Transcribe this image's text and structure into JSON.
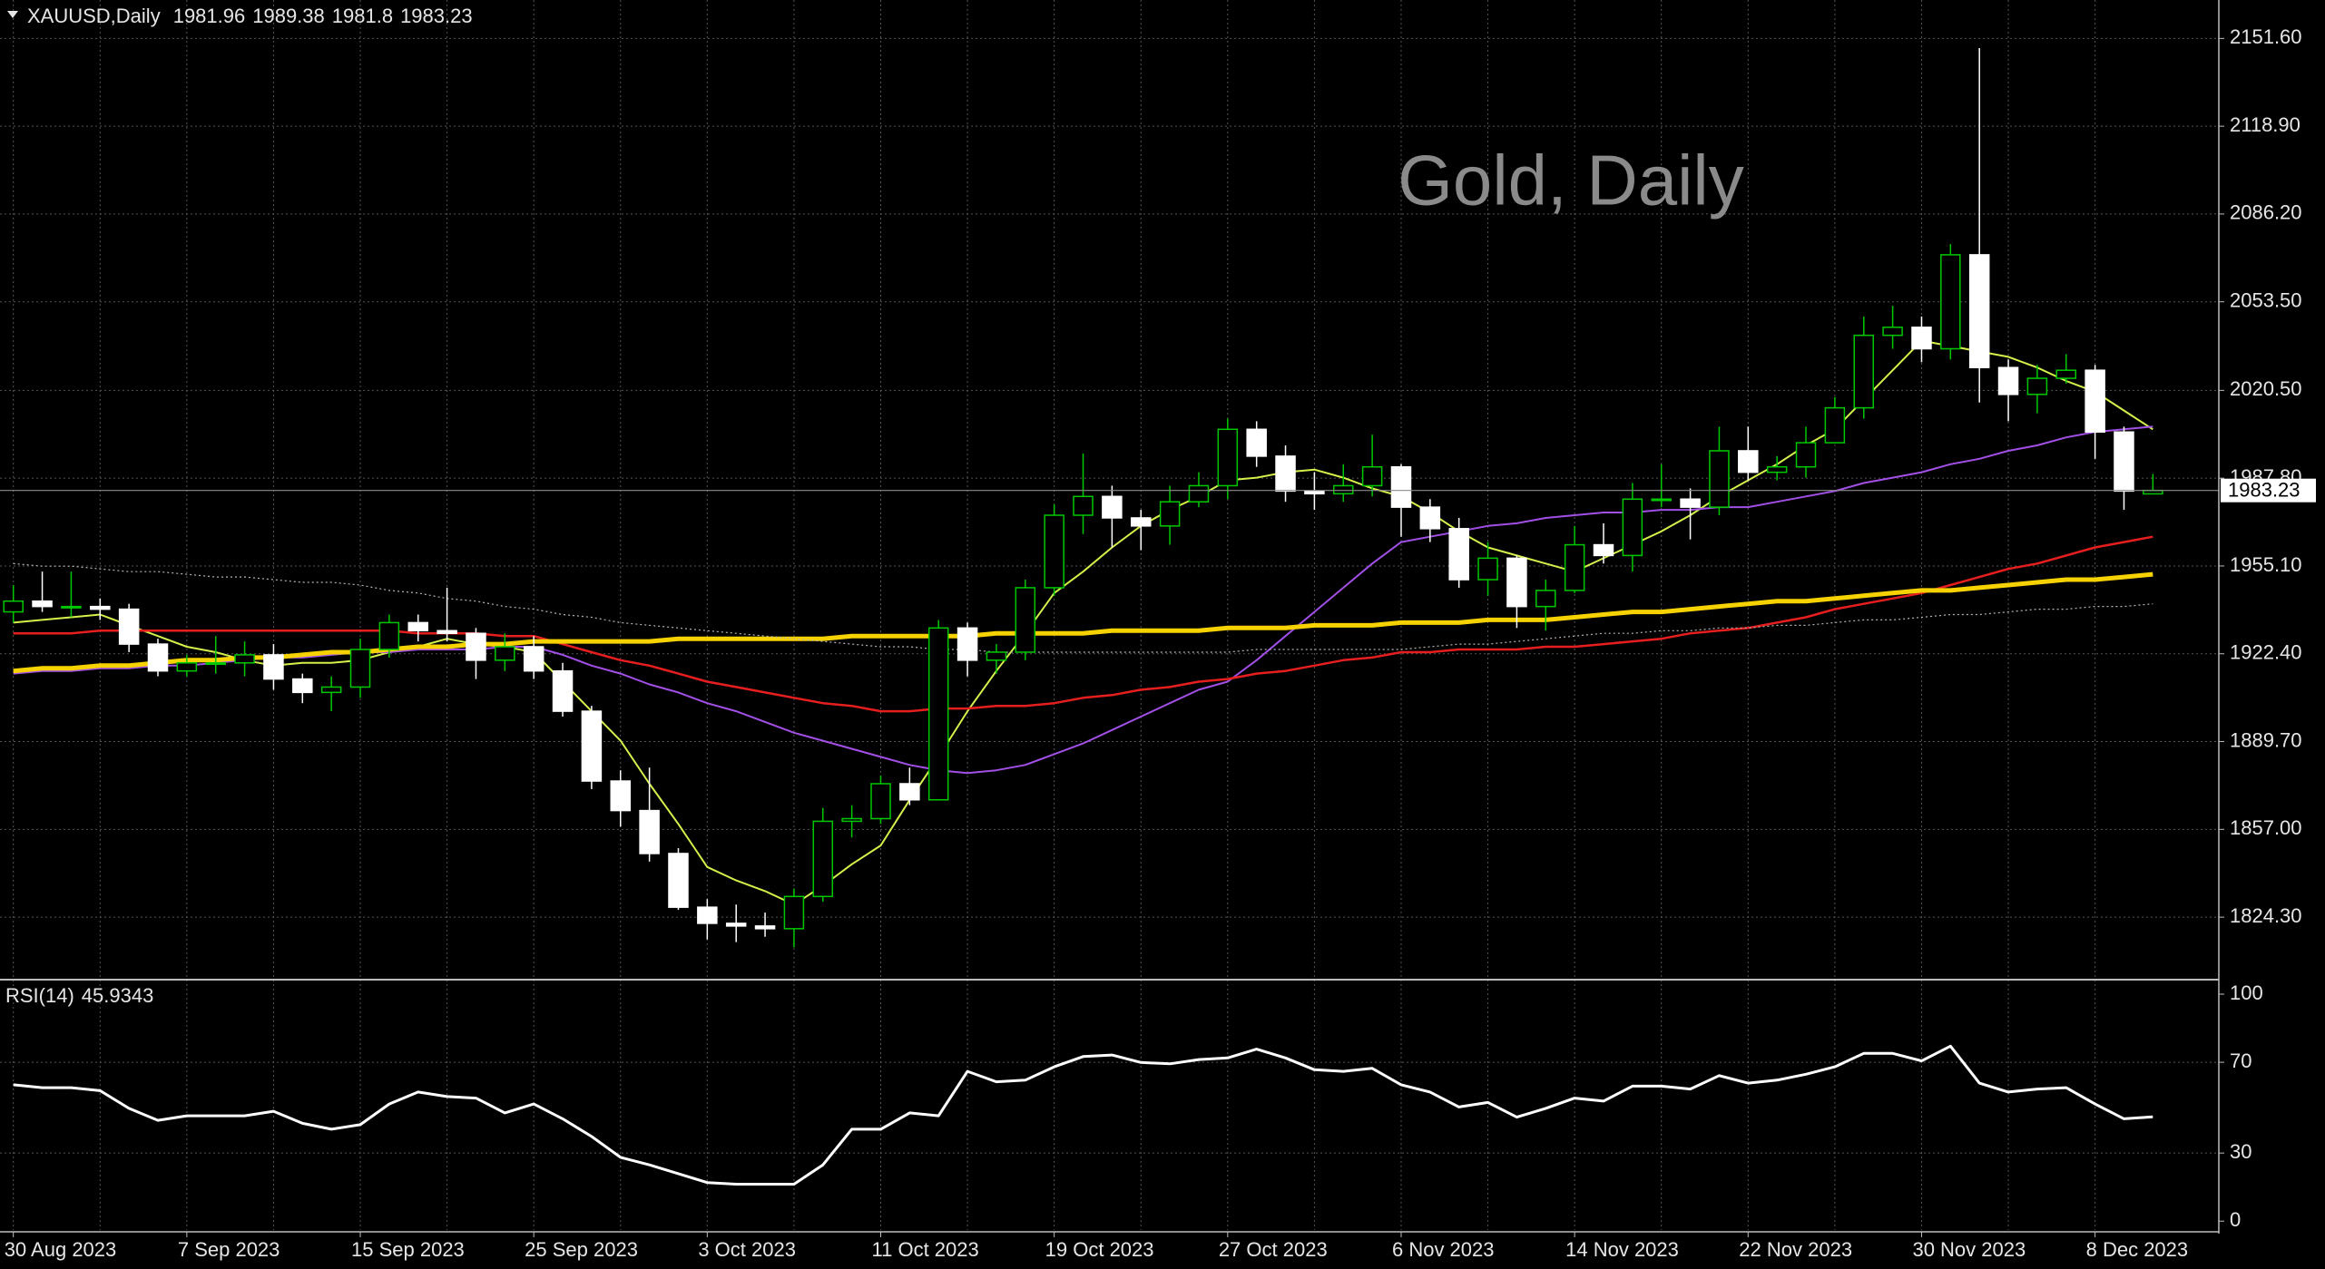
{
  "chart_data": {
    "type": "candlestick",
    "symbol": "XAUUSD,Daily",
    "watermark": "Gold, Daily",
    "categories": [
      "30 Aug 2023",
      null,
      null,
      null,
      null,
      null,
      "7 Sep 2023",
      null,
      null,
      null,
      null,
      null,
      "15 Sep 2023",
      null,
      null,
      null,
      null,
      null,
      "25 Sep 2023",
      null,
      null,
      null,
      null,
      null,
      "3 Oct 2023",
      null,
      null,
      null,
      null,
      null,
      "11 Oct 2023",
      null,
      null,
      null,
      null,
      null,
      "19 Oct 2023",
      null,
      null,
      null,
      null,
      null,
      "27 Oct 2023",
      null,
      null,
      null,
      null,
      null,
      "6 Nov 2023",
      null,
      null,
      null,
      null,
      null,
      "14 Nov 2023",
      null,
      null,
      null,
      null,
      null,
      "22 Nov 2023",
      null,
      null,
      null,
      null,
      null,
      "30 Nov 2023",
      null,
      null,
      null,
      null,
      null,
      "8 Dec 2023",
      null,
      null
    ],
    "open": [
      1938,
      1942,
      1940,
      1940,
      1939,
      1926,
      1916,
      1919,
      1919,
      1922,
      1913,
      1908,
      1910,
      1924,
      1934,
      1931,
      1930,
      1920,
      1925,
      1916,
      1901,
      1875,
      1864,
      1848,
      1828,
      1822,
      1821,
      1820,
      1832,
      1860,
      1861,
      1874,
      1868,
      1932,
      1920,
      1923,
      1947,
      1974,
      1981,
      1973,
      1970,
      1979,
      1985,
      2006,
      1996,
      1983,
      1982,
      1985,
      1992,
      1977,
      1969,
      1950,
      1958,
      1940,
      1946,
      1963,
      1959,
      1980,
      1980,
      1977,
      1998,
      1990,
      1992,
      2001,
      2014,
      2041,
      2044,
      2036,
      2071,
      2029,
      2019,
      2025,
      2028,
      2005,
      1981.96
    ],
    "high": [
      1948,
      1953,
      1953,
      1943,
      1941,
      1928,
      1922,
      1929,
      1927,
      1926,
      1915,
      1914,
      1928,
      1937,
      1937,
      1947,
      1932,
      1930,
      1929,
      1919,
      1903,
      1879,
      1880,
      1850,
      1831,
      1829,
      1826,
      1835,
      1865,
      1866,
      1877,
      1880,
      1935,
      1934,
      1926,
      1950,
      1978,
      1997,
      1985,
      1976,
      1985,
      1990,
      2010,
      2009,
      2000,
      1990,
      1993,
      2004,
      1993,
      1980,
      1973,
      1964,
      1959,
      1950,
      1970,
      1971,
      1986,
      1993,
      1984,
      2007,
      2007,
      1996,
      2007,
      2018,
      2048,
      2052,
      2048,
      2075,
      2148,
      2032,
      2030,
      2034,
      2030,
      2007,
      1989.38
    ],
    "low": [
      1934,
      1938,
      1936,
      1935,
      1923,
      1914,
      1914,
      1915,
      1914,
      1909,
      1904,
      1901,
      1906,
      1921,
      1927,
      1927,
      1913,
      1916,
      1913,
      1899,
      1872,
      1858,
      1845,
      1827,
      1816,
      1815,
      1817,
      1813,
      1830,
      1854,
      1859,
      1866,
      1868,
      1914,
      1915,
      1920,
      1944,
      1967,
      1962,
      1961,
      1963,
      1977,
      1980,
      1992,
      1979,
      1976,
      1979,
      1981,
      1966,
      1964,
      1947,
      1944,
      1932,
      1931,
      1945,
      1956,
      1953,
      1977,
      1965,
      1974,
      1987,
      1987,
      1988,
      2001,
      2010,
      2036,
      2031,
      2032,
      2016,
      2009,
      2012,
      2023,
      1995,
      1976,
      1981.8
    ],
    "close": [
      1942,
      1940,
      1940,
      1939,
      1926,
      1916,
      1919,
      1919,
      1922,
      1913,
      1908,
      1910,
      1924,
      1934,
      1931,
      1930,
      1920,
      1925,
      1916,
      1901,
      1875,
      1864,
      1848,
      1828,
      1822,
      1821,
      1820,
      1832,
      1860,
      1861,
      1874,
      1868,
      1932,
      1920,
      1923,
      1947,
      1974,
      1981,
      1973,
      1970,
      1979,
      1985,
      2006,
      1996,
      1983,
      1982,
      1985,
      1992,
      1977,
      1969,
      1950,
      1958,
      1940,
      1946,
      1963,
      1959,
      1980,
      1980,
      1977,
      1998,
      1990,
      1992,
      2001,
      2014,
      2041,
      2044,
      2036,
      2071,
      2029,
      2019,
      2025,
      2028,
      2005,
      1983,
      1983.23
    ],
    "up_color": "#00c800",
    "down_color": "#ffffff",
    "ylim": [
      1801.7,
      2165.9
    ],
    "yticks": [
      {
        "value": 2151.6,
        "label": "2151.60"
      },
      {
        "value": 2118.9,
        "label": "2118.90"
      },
      {
        "value": 2086.2,
        "label": "2086.20"
      },
      {
        "value": 2053.5,
        "label": "2053.50"
      },
      {
        "value": 2020.5,
        "label": "2020.50"
      },
      {
        "value": 1987.8,
        "label": "1987.80"
      },
      {
        "value": 1955.1,
        "label": "1955.10"
      },
      {
        "value": 1922.4,
        "label": "1922.40"
      },
      {
        "value": 1889.7,
        "label": "1889.70"
      },
      {
        "value": 1857,
        "label": "1857.00"
      },
      {
        "value": 1824.3,
        "label": "1824.30"
      }
    ],
    "grid": true,
    "series": [
      {
        "color": "#d4f04a",
        "width": 2,
        "values": [
          1934,
          1935,
          1936,
          1937,
          1933,
          1929,
          1925,
          1923,
          1920,
          1918,
          1919,
          1919,
          1920,
          1923,
          1925,
          1928,
          1926,
          1925,
          1923,
          1912,
          1901,
          1890,
          1874,
          1859,
          1843,
          1838,
          1834,
          1829,
          1836,
          1844,
          1851,
          1868,
          1884,
          1901,
          1916,
          1930,
          1945,
          1953,
          1962,
          1970,
          1976,
          1981,
          1987,
          1988,
          1990,
          1991,
          1988,
          1984,
          1981,
          1975,
          1968,
          1962,
          1959,
          1956,
          1953,
          1958,
          1963,
          1968,
          1974,
          1981,
          1987,
          1993,
          2000,
          2006,
          2017,
          2028,
          2039,
          2037,
          2035,
          2033,
          2029,
          2024,
          2020,
          2013,
          2006
        ]
      },
      {
        "color": "#a24fe6",
        "width": 2,
        "values": [
          1915,
          1916,
          1916,
          1917,
          1917,
          1918,
          1918,
          1919,
          1920,
          1921,
          1921,
          1922,
          1923,
          1923,
          1924,
          1924,
          1924,
          1925,
          1925,
          1922,
          1918,
          1915,
          1911,
          1908,
          1904,
          1901,
          1897,
          1893,
          1890,
          1887,
          1884,
          1881,
          1879,
          1878,
          1879,
          1881,
          1885,
          1889,
          1894,
          1899,
          1904,
          1909,
          1912,
          1920,
          1929,
          1938,
          1947,
          1956,
          1964,
          1966,
          1968,
          1970,
          1971,
          1973,
          1974,
          1975,
          1975,
          1976,
          1976,
          1977,
          1977,
          1979,
          1981,
          1983,
          1986,
          1988,
          1990,
          1993,
          1995,
          1998,
          2000,
          2003,
          2005,
          2006,
          2007
        ]
      },
      {
        "color": "#e61e1e",
        "width": 2.5,
        "values": [
          1930,
          1930,
          1930,
          1931,
          1931,
          1931,
          1931,
          1931,
          1931,
          1931,
          1931,
          1931,
          1931,
          1931,
          1930,
          1930,
          1930,
          1929,
          1929,
          1926,
          1923,
          1920,
          1918,
          1915,
          1912,
          1910,
          1908,
          1906,
          1904,
          1903,
          1901,
          1901,
          1902,
          1902,
          1903,
          1903,
          1904,
          1906,
          1907,
          1909,
          1910,
          1912,
          1913,
          1915,
          1916,
          1918,
          1920,
          1921,
          1923,
          1923,
          1924,
          1924,
          1924,
          1925,
          1925,
          1926,
          1927,
          1928,
          1930,
          1931,
          1932,
          1934,
          1936,
          1939,
          1941,
          1943,
          1945,
          1948,
          1951,
          1954,
          1956,
          1959,
          1962,
          1964,
          1966
        ]
      },
      {
        "color": "#f5d200",
        "width": 5,
        "values": [
          1916,
          1917,
          1917,
          1918,
          1918,
          1919,
          1920,
          1920,
          1921,
          1921,
          1922,
          1923,
          1923,
          1924,
          1925,
          1925,
          1926,
          1926,
          1927,
          1927,
          1927,
          1927,
          1927,
          1928,
          1928,
          1928,
          1928,
          1928,
          1928,
          1929,
          1929,
          1929,
          1929,
          1929,
          1930,
          1930,
          1930,
          1930,
          1931,
          1931,
          1931,
          1931,
          1932,
          1932,
          1932,
          1933,
          1933,
          1933,
          1934,
          1934,
          1934,
          1935,
          1935,
          1935,
          1936,
          1937,
          1938,
          1938,
          1939,
          1940,
          1941,
          1942,
          1942,
          1943,
          1944,
          1945,
          1946,
          1946,
          1947,
          1948,
          1949,
          1950,
          1950,
          1951,
          1952
        ]
      },
      {
        "color": "#b4b4b4",
        "width": 1.2,
        "dashed": true,
        "values": [
          1956,
          1955,
          1955,
          1954,
          1953,
          1953,
          1952,
          1951,
          1951,
          1950,
          1949,
          1949,
          1948,
          1946,
          1945,
          1943,
          1942,
          1940,
          1939,
          1937,
          1936,
          1934,
          1933,
          1932,
          1931,
          1930,
          1929,
          1928,
          1927,
          1926,
          1925,
          1925,
          1924,
          1924,
          1923,
          1923,
          1923,
          1923,
          1923,
          1923,
          1923,
          1923,
          1923,
          1924,
          1924,
          1924,
          1924,
          1924,
          1924,
          1925,
          1926,
          1926,
          1927,
          1928,
          1929,
          1930,
          1930,
          1931,
          1931,
          1932,
          1932,
          1933,
          1933,
          1934,
          1935,
          1935,
          1936,
          1937,
          1937,
          1938,
          1939,
          1939,
          1940,
          1940,
          1941
        ]
      }
    ],
    "rsi": {
      "label": "RSI(14)",
      "color": "#ffffff",
      "ylim": [
        -3.9,
        105.2
      ],
      "yticks": [
        100,
        70,
        30,
        0
      ],
      "values": [
        60.1,
        58.8,
        58.8,
        57.5,
        49.7,
        44.4,
        46.4,
        46.4,
        46.4,
        48.4,
        43.1,
        40.5,
        42.5,
        51.6,
        56.9,
        54.9,
        54.2,
        47.7,
        51.6,
        45.1,
        37.3,
        28.1,
        24.8,
        20.9,
        17.0,
        16.3,
        16.3,
        16.3,
        24.8,
        40.5,
        40.5,
        47.7,
        46.4,
        66.0,
        61.4,
        62.1,
        68.0,
        72.5,
        73.2,
        69.9,
        69.3,
        71.2,
        71.9,
        75.8,
        71.9,
        66.7,
        66.0,
        67.3,
        60.1,
        56.9,
        50.3,
        52.3,
        45.8,
        49.7,
        54.2,
        52.9,
        59.5,
        59.5,
        58.2,
        64.1,
        60.8,
        62.1,
        64.7,
        68.0,
        73.9,
        73.9,
        70.6,
        77.1,
        60.8,
        56.9,
        58.2,
        58.8,
        51.6,
        45.1,
        45.9343
      ]
    }
  }
}
